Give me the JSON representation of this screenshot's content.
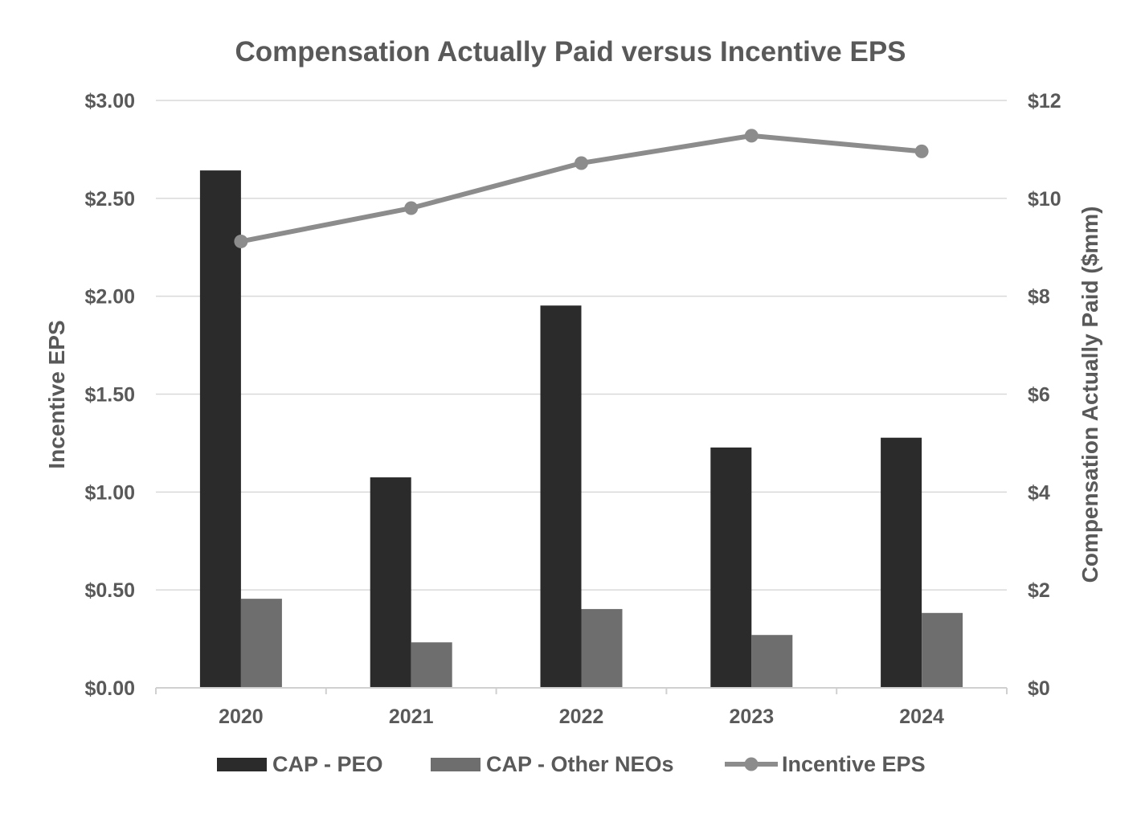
{
  "chart_data": {
    "type": "bar",
    "title": "Compensation Actually Paid versus Incentive EPS",
    "categories": [
      "2020",
      "2021",
      "2022",
      "2023",
      "2024"
    ],
    "y_left": {
      "label": "Incentive EPS",
      "ylim": [
        0,
        3
      ],
      "ticks": [
        0,
        0.5,
        1,
        1.5,
        2,
        2.5,
        3
      ],
      "tick_labels": [
        "$0.00",
        "$0.50",
        "$1.00",
        "$1.50",
        "$2.00",
        "$2.50",
        "$3.00"
      ]
    },
    "y_right": {
      "label": "Compensation Actually Paid ($mm)",
      "ylim": [
        0,
        12
      ],
      "ticks": [
        0,
        2,
        4,
        6,
        8,
        10,
        12
      ],
      "tick_labels": [
        "$0",
        "$2",
        "$4",
        "$6",
        "$8",
        "$10",
        "$12"
      ]
    },
    "series": [
      {
        "name": "CAP - PEO",
        "type": "bar",
        "axis": "right",
        "color": "#2b2b2b",
        "values": [
          10.57,
          4.3,
          7.81,
          4.91,
          5.11
        ]
      },
      {
        "name": "CAP - Other NEOs",
        "type": "bar",
        "axis": "right",
        "color": "#6e6e6e",
        "values": [
          1.82,
          0.93,
          1.61,
          1.08,
          1.53
        ]
      },
      {
        "name": "Incentive EPS",
        "type": "line",
        "axis": "left",
        "color": "#8c8c8c",
        "values": [
          2.28,
          2.45,
          2.68,
          2.82,
          2.74
        ]
      }
    ],
    "grid": true,
    "legend_position": "bottom"
  }
}
